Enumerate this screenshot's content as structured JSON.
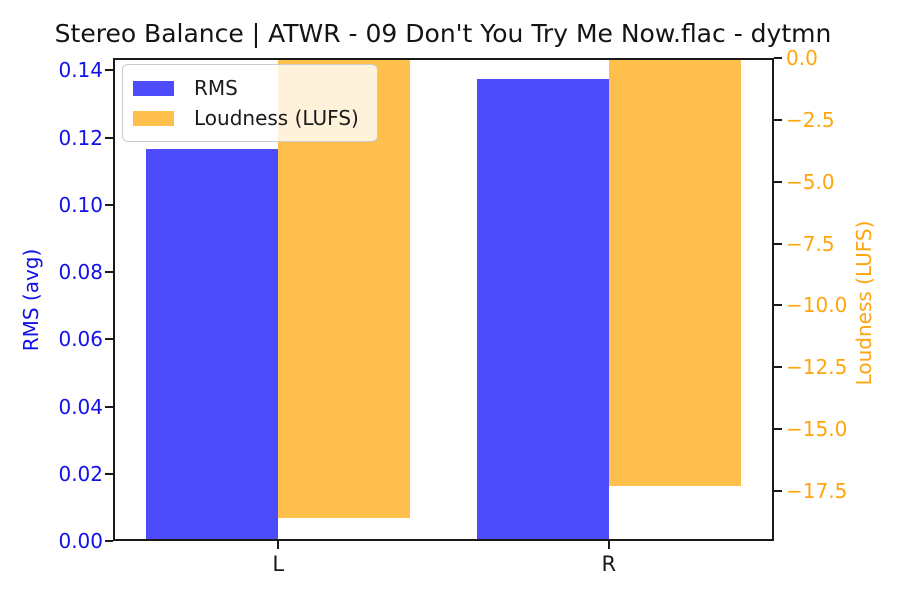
{
  "title": "Stereo Balance | ATWR - 09 Don't You Try Me Now.flac - dytmn",
  "chart_data": {
    "type": "bar",
    "categories": [
      "L",
      "R"
    ],
    "series": [
      {
        "name": "RMS",
        "axis": "left",
        "values": [
          0.1166,
          0.1374
        ],
        "color": "#4c4cfb"
      },
      {
        "name": "Loudness (LUFS)",
        "axis": "right",
        "values": [
          -18.6,
          -17.3
        ],
        "color": "#ffbf4d"
      }
    ],
    "bar_width": 0.4,
    "x_axis": {
      "tick_labels": [
        "L",
        "R"
      ],
      "lim": [
        -0.5,
        1.5
      ],
      "color": "#1a1a1a"
    },
    "left_axis": {
      "label": "RMS (avg)",
      "color": "#1212e8",
      "lim": [
        0,
        0.1437
      ],
      "tick_values": [
        0,
        0.02,
        0.04,
        0.06,
        0.08,
        0.1,
        0.12,
        0.14
      ],
      "tick_labels": [
        "0.00",
        "0.02",
        "0.04",
        "0.06",
        "0.08",
        "0.10",
        "0.12",
        "0.14"
      ]
    },
    "right_axis": {
      "label": "Loudness (LUFS)",
      "color": "#ffa50e",
      "lim": [
        -19.52,
        0
      ],
      "tick_values": [
        0,
        -2.5,
        -5.0,
        -7.5,
        -10.0,
        -12.5,
        -15.0,
        -17.5
      ],
      "tick_labels": [
        "0.0",
        "−2.5",
        "−5.0",
        "−7.5",
        "−10.0",
        "−12.5",
        "−15.0",
        "−17.5"
      ]
    },
    "legend": {
      "position": "upper left",
      "entries": [
        "RMS",
        "Loudness (LUFS)"
      ]
    },
    "grid": false,
    "background": "#ffffff"
  }
}
